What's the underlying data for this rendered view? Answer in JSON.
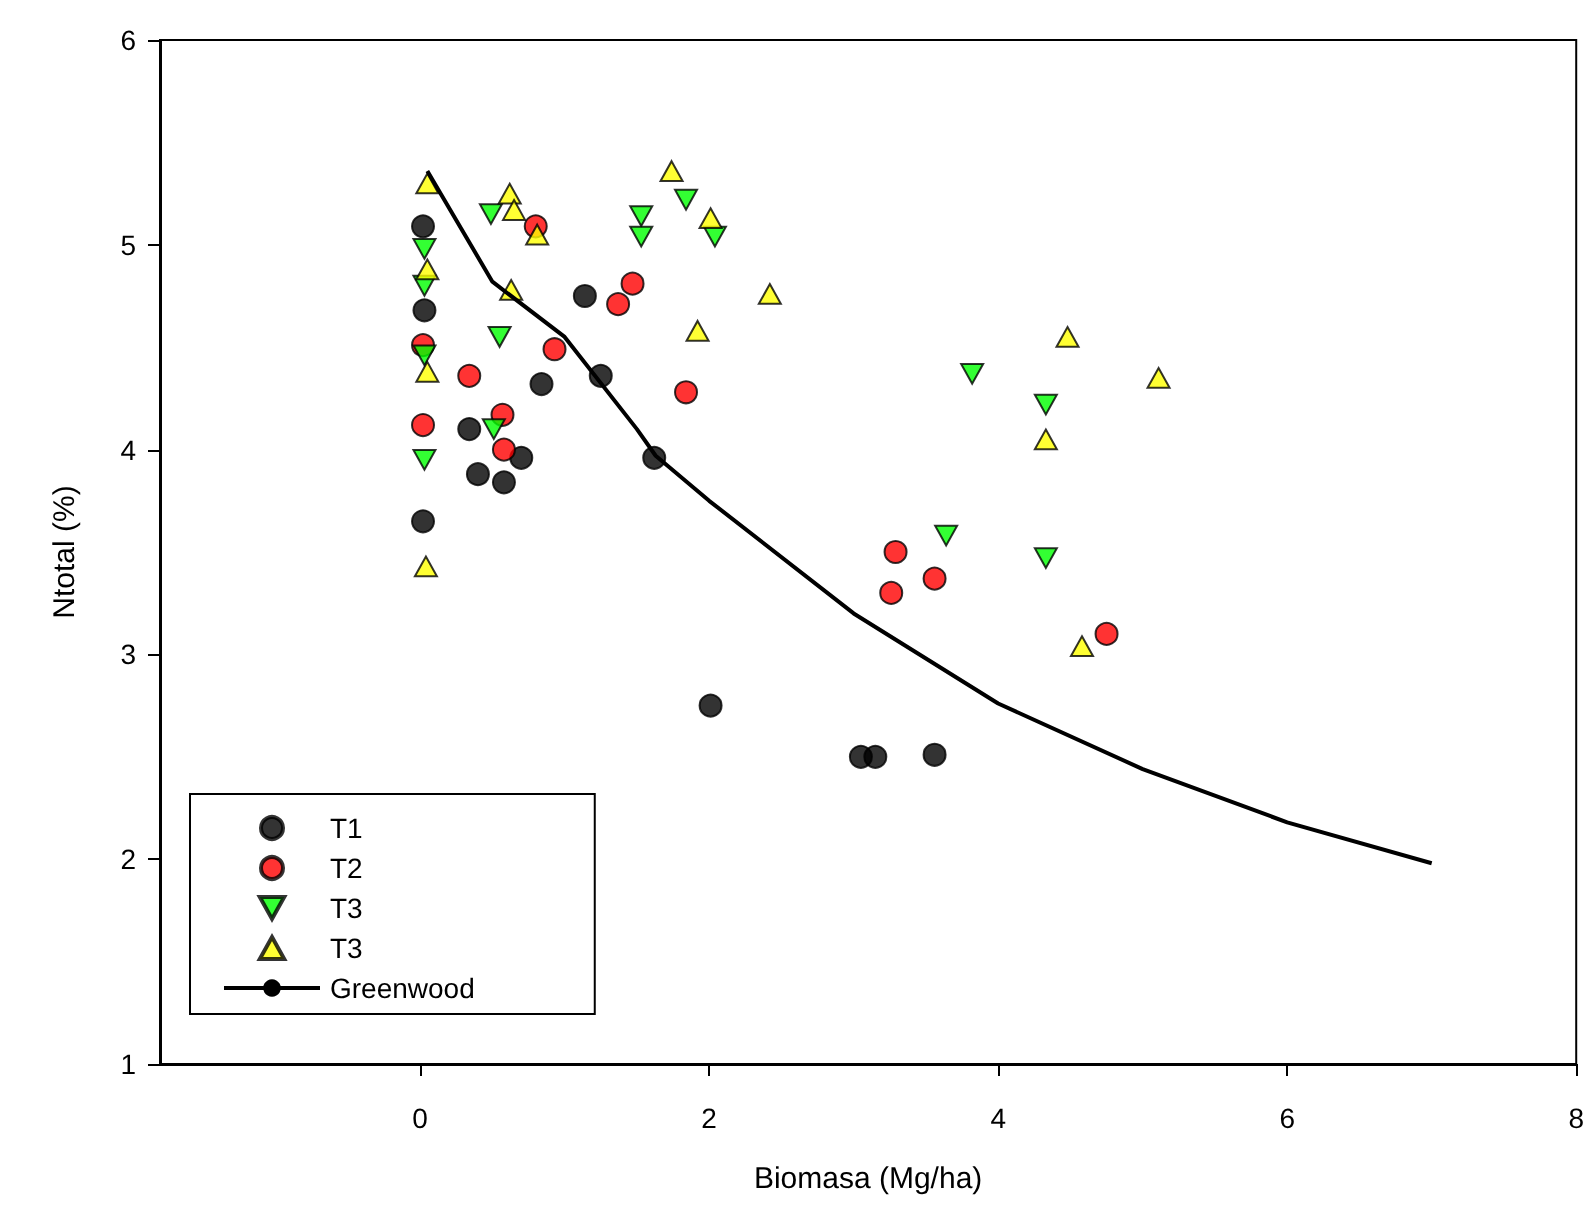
{
  "chart_data": {
    "type": "scatter",
    "xlabel": "Biomasa (Mg/ha)",
    "ylabel": "Ntotal (%)",
    "xlim": [
      -1.8,
      8
    ],
    "xticks": [
      0,
      2,
      4,
      6,
      8
    ],
    "ylim": [
      1,
      6
    ],
    "yticks": [
      1,
      2,
      3,
      4,
      5,
      6
    ],
    "grid": false,
    "legend": "bottom left",
    "series": [
      {
        "name": "T1",
        "color": "#000000",
        "marker": "circle",
        "x": [
          0.02,
          0.03,
          0.02,
          1.14,
          1.25,
          0.84,
          0.34,
          0.7,
          0.4,
          0.58,
          1.62,
          2.01,
          3.05,
          3.15,
          3.56
        ],
        "values": [
          5.09,
          4.68,
          3.65,
          4.75,
          4.36,
          4.32,
          4.1,
          3.96,
          3.88,
          3.84,
          3.96,
          2.75,
          2.5,
          2.5,
          2.51
        ]
      },
      {
        "name": "T2",
        "color": "#ff0000",
        "marker": "circle",
        "x": [
          0.02,
          0.02,
          0.34,
          0.57,
          0.58,
          0.8,
          0.93,
          1.47,
          1.37,
          1.84,
          3.29,
          3.26,
          3.56,
          4.75
        ],
        "values": [
          4.51,
          4.12,
          4.36,
          4.17,
          4.0,
          5.09,
          4.49,
          4.81,
          4.71,
          4.28,
          3.5,
          3.3,
          3.37,
          3.1
        ]
      },
      {
        "name": "T3",
        "color": "#00ff00",
        "marker": "triangle_down",
        "x": [
          0.03,
          0.03,
          0.03,
          0.03,
          0.49,
          0.55,
          0.51,
          1.53,
          1.53,
          1.84,
          2.04,
          3.82,
          4.33,
          3.64,
          4.33
        ],
        "values": [
          4.98,
          4.8,
          4.46,
          3.95,
          5.15,
          4.55,
          4.1,
          5.14,
          5.04,
          5.22,
          5.04,
          4.37,
          4.22,
          3.58,
          3.47
        ]
      },
      {
        "name": "T3",
        "color": "#ffff00",
        "marker": "triangle",
        "x": [
          0.05,
          0.05,
          0.05,
          0.04,
          0.62,
          0.65,
          0.63,
          0.81,
          1.74,
          2.01,
          1.92,
          2.42,
          4.48,
          5.11,
          4.33,
          4.58
        ],
        "values": [
          5.3,
          4.88,
          4.38,
          3.43,
          5.25,
          5.17,
          4.78,
          5.05,
          5.36,
          5.13,
          4.58,
          4.76,
          4.55,
          4.35,
          4.05,
          3.04
        ]
      },
      {
        "name": "Greenwood",
        "type": "line",
        "color": "#000000",
        "marker": "none",
        "line_style": "solid",
        "x": [
          0.05,
          0.5,
          1,
          1.5,
          1.63,
          2,
          3,
          4,
          5,
          6,
          7
        ],
        "values": [
          5.36,
          4.82,
          4.55,
          4.1,
          3.97,
          3.75,
          3.2,
          2.76,
          2.44,
          2.18,
          1.98
        ]
      }
    ]
  }
}
